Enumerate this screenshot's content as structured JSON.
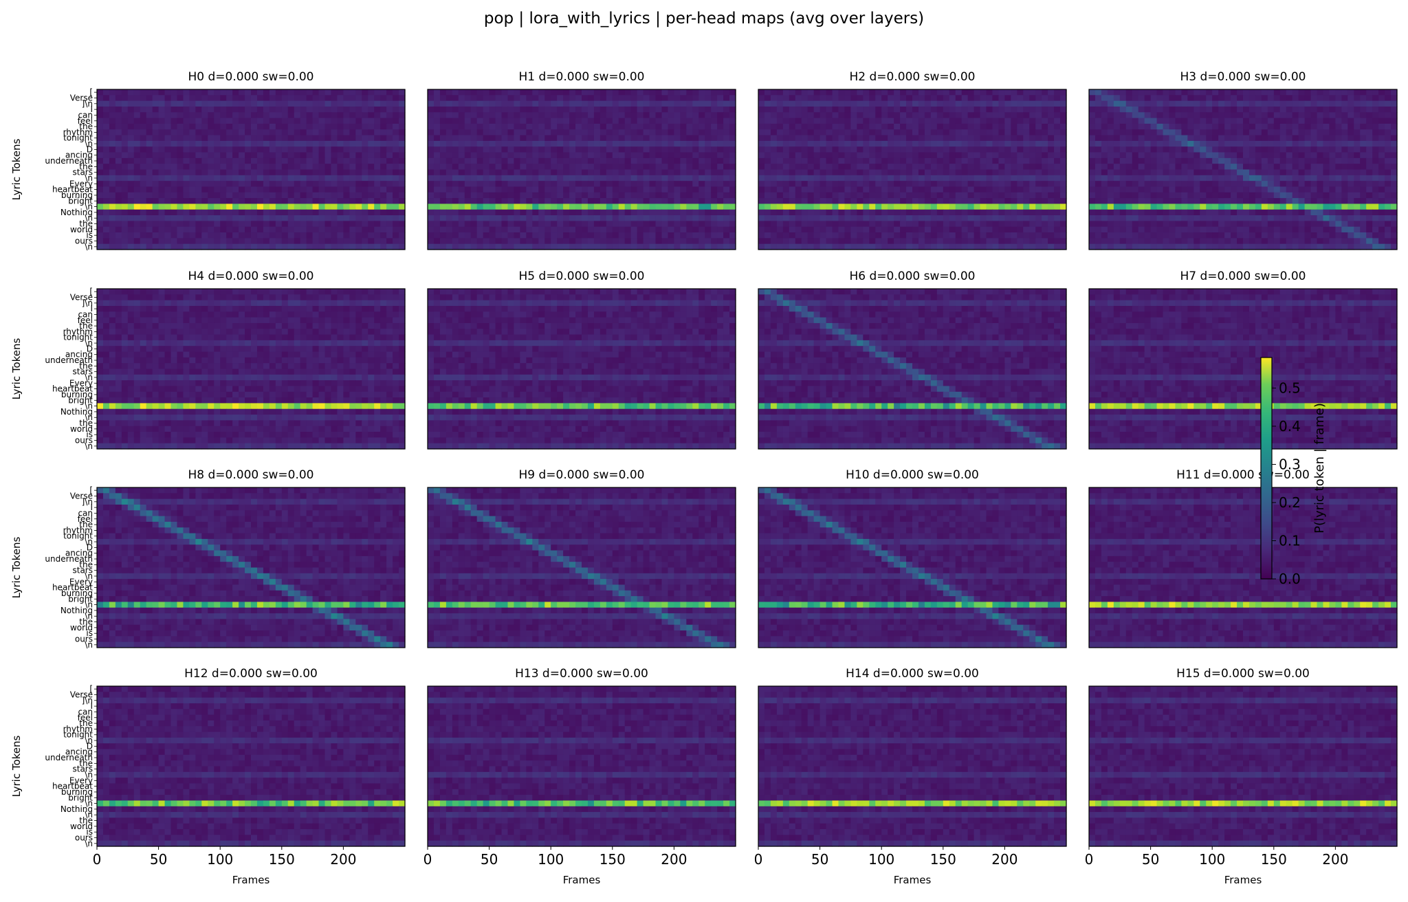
{
  "chart_data": {
    "type": "heatmap",
    "title": "pop | lora_with_lyrics | per-head maps (avg over layers)",
    "layout": "4x4 grid of heatmap panels",
    "xlabel": "Frames",
    "ylabel": "Lyric Tokens",
    "x_ticks": [
      0,
      50,
      100,
      150,
      200
    ],
    "xlim": [
      0,
      250
    ],
    "y_tick_labels": [
      "[",
      "Verse",
      "]\\n",
      "I",
      "can",
      "feel",
      "the",
      "rhythm",
      "tonight",
      "\\n",
      "D",
      "ancing",
      "underneath",
      "the",
      "stars",
      "\\n",
      "Every",
      "heartbeat",
      "burning",
      "bright",
      "\\n",
      "Nothing",
      "\\n",
      "the",
      "world",
      "is",
      "ours",
      "\\n"
    ],
    "bright_row_index": 20,
    "colorbar": {
      "label": "P(lyric token | frame)",
      "colormap": "viridis",
      "vmin": 0.0,
      "vmax": 0.58,
      "ticks": [
        0.0,
        0.1,
        0.2,
        0.3,
        0.4,
        0.5
      ],
      "tick_labels": [
        "0.0",
        "0.1",
        "0.2",
        "0.3",
        "0.4",
        "0.5"
      ]
    },
    "panels": [
      {
        "title": "H0 d=0.000 sw=0.00",
        "bright_band_strength": 0.58,
        "diagonal_strength": 0.0
      },
      {
        "title": "H1 d=0.000 sw=0.00",
        "bright_band_strength": 0.42,
        "diagonal_strength": 0.0
      },
      {
        "title": "H2 d=0.000 sw=0.00",
        "bright_band_strength": 0.52,
        "diagonal_strength": 0.0
      },
      {
        "title": "H3 d=0.000 sw=0.00",
        "bright_band_strength": 0.4,
        "diagonal_strength": 0.12
      },
      {
        "title": "H4 d=0.000 sw=0.00",
        "bright_band_strength": 0.58,
        "diagonal_strength": 0.0
      },
      {
        "title": "H5 d=0.000 sw=0.00",
        "bright_band_strength": 0.46,
        "diagonal_strength": 0.0
      },
      {
        "title": "H6 d=0.000 sw=0.00",
        "bright_band_strength": 0.32,
        "diagonal_strength": 0.15
      },
      {
        "title": "H7 d=0.000 sw=0.00",
        "bright_band_strength": 0.54,
        "diagonal_strength": 0.0
      },
      {
        "title": "H8 d=0.000 sw=0.00",
        "bright_band_strength": 0.34,
        "diagonal_strength": 0.2
      },
      {
        "title": "H9 d=0.000 sw=0.00",
        "bright_band_strength": 0.4,
        "diagonal_strength": 0.18
      },
      {
        "title": "H10 d=0.000 sw=0.00",
        "bright_band_strength": 0.34,
        "diagonal_strength": 0.18
      },
      {
        "title": "H11 d=0.000 sw=0.00",
        "bright_band_strength": 0.56,
        "diagonal_strength": 0.0
      },
      {
        "title": "H12 d=0.000 sw=0.00",
        "bright_band_strength": 0.44,
        "diagonal_strength": 0.0
      },
      {
        "title": "H13 d=0.000 sw=0.00",
        "bright_band_strength": 0.4,
        "diagonal_strength": 0.0
      },
      {
        "title": "H14 d=0.000 sw=0.00",
        "bright_band_strength": 0.54,
        "diagonal_strength": 0.0
      },
      {
        "title": "H15 d=0.000 sw=0.00",
        "bright_band_strength": 0.56,
        "diagonal_strength": 0.0
      }
    ]
  }
}
